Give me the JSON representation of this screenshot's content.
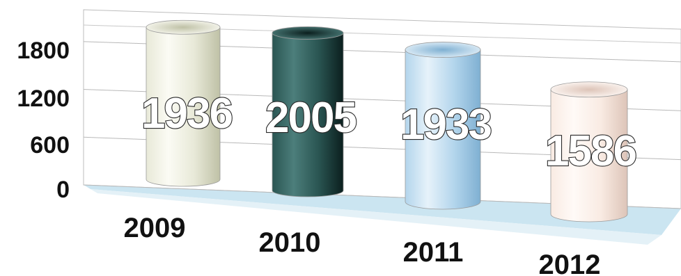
{
  "chart_data": {
    "type": "bar",
    "style": "3d-cylinder",
    "categories": [
      "2009",
      "2010",
      "2011",
      "2012"
    ],
    "values": [
      1936,
      2005,
      1933,
      1586
    ],
    "data_labels": [
      "1936",
      "2005",
      "1933",
      "1586"
    ],
    "y_ticks": [
      "0",
      "600",
      "1200",
      "1800"
    ],
    "ylim": [
      0,
      2200
    ],
    "grid": true,
    "legend": "none",
    "bar_colors": [
      {
        "light": "#fbfbf4",
        "mid": "#e8e9d8",
        "dark": "#bfc1a6"
      },
      {
        "light": "#4c7e7b",
        "mid": "#2a5552",
        "dark": "#0b1f1e"
      },
      {
        "light": "#e6f2fa",
        "mid": "#b3d5ec",
        "dark": "#7fb0d2"
      },
      {
        "light": "#fffaf7",
        "mid": "#f9ebe3",
        "dark": "#ddc4b8"
      }
    ],
    "floor_color": "#c2e0ee"
  }
}
